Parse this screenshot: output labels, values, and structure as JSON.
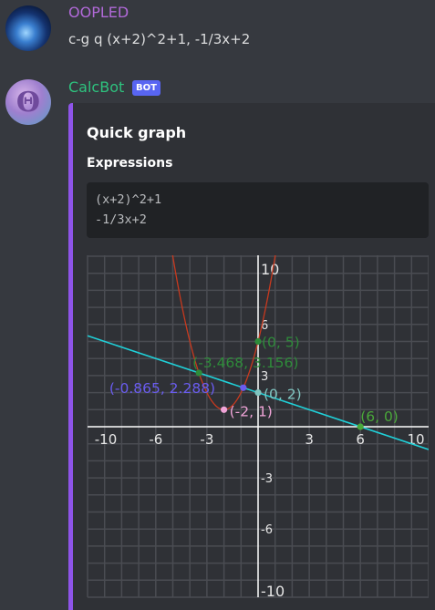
{
  "messages": [
    {
      "author": "OOPLED",
      "text": "c-g q (x+2)^2+1, -1/3x+2"
    },
    {
      "author": "CalcBot",
      "badge": "BOT",
      "avatar_glyph": "Θ",
      "embed": {
        "title": "Quick graph",
        "field_name": "Expressions",
        "expressions": [
          "(x+2)^2+1",
          "-1/3x+2"
        ]
      }
    }
  ],
  "colors": {
    "background": "#36393f",
    "embed_background": "#2f3136",
    "embed_accent": "#8e54e9",
    "user_name": "#b169d8",
    "bot_name": "#2ec27e",
    "bot_badge": "#5865f2",
    "grid": "#4a4c52",
    "axis": "#ffffff",
    "parabola": "#c8391e",
    "line": "#20d0d8",
    "label_green": "#3aa84a",
    "label_purple": "#6a5cf0",
    "label_pink": "#f0a4d8"
  },
  "chart_data": {
    "type": "line",
    "xlim": [
      -10,
      10
    ],
    "ylim": [
      -10,
      10
    ],
    "grid": true,
    "x_tick_labels": [
      "-10",
      "-6",
      "-3",
      "3",
      "6",
      "10"
    ],
    "y_tick_labels": [
      "10",
      "6",
      "3",
      "-3",
      "-6",
      "-10"
    ],
    "x_ticks": [
      -10,
      -6,
      -3,
      3,
      6,
      10
    ],
    "y_ticks": [
      10,
      6,
      3,
      -3,
      -6,
      -10
    ],
    "series": [
      {
        "expression": "(x+2)^2+1",
        "kind": "parabola",
        "color": "#c8391e"
      },
      {
        "expression": "-1/3x+2",
        "kind": "line",
        "color": "#20d0d8"
      }
    ],
    "points": [
      {
        "x": 0,
        "y": 5,
        "label": "(0, 5)",
        "color": "#2e8b3a"
      },
      {
        "x": -3.468,
        "y": 3.156,
        "label": "(-3.468, 3.156)",
        "color": "#2e8b3a"
      },
      {
        "x": -0.865,
        "y": 2.288,
        "label": "(-0.865, 2.288)",
        "color": "#6a5cf0"
      },
      {
        "x": 0,
        "y": 2,
        "label": "(0, 2)",
        "color": "#7fc4c0"
      },
      {
        "x": -2,
        "y": 1,
        "label": "(-2, 1)",
        "color": "#f0a4d8"
      },
      {
        "x": 6,
        "y": 0,
        "label": "(6, 0)",
        "color": "#4aa83a"
      }
    ]
  }
}
